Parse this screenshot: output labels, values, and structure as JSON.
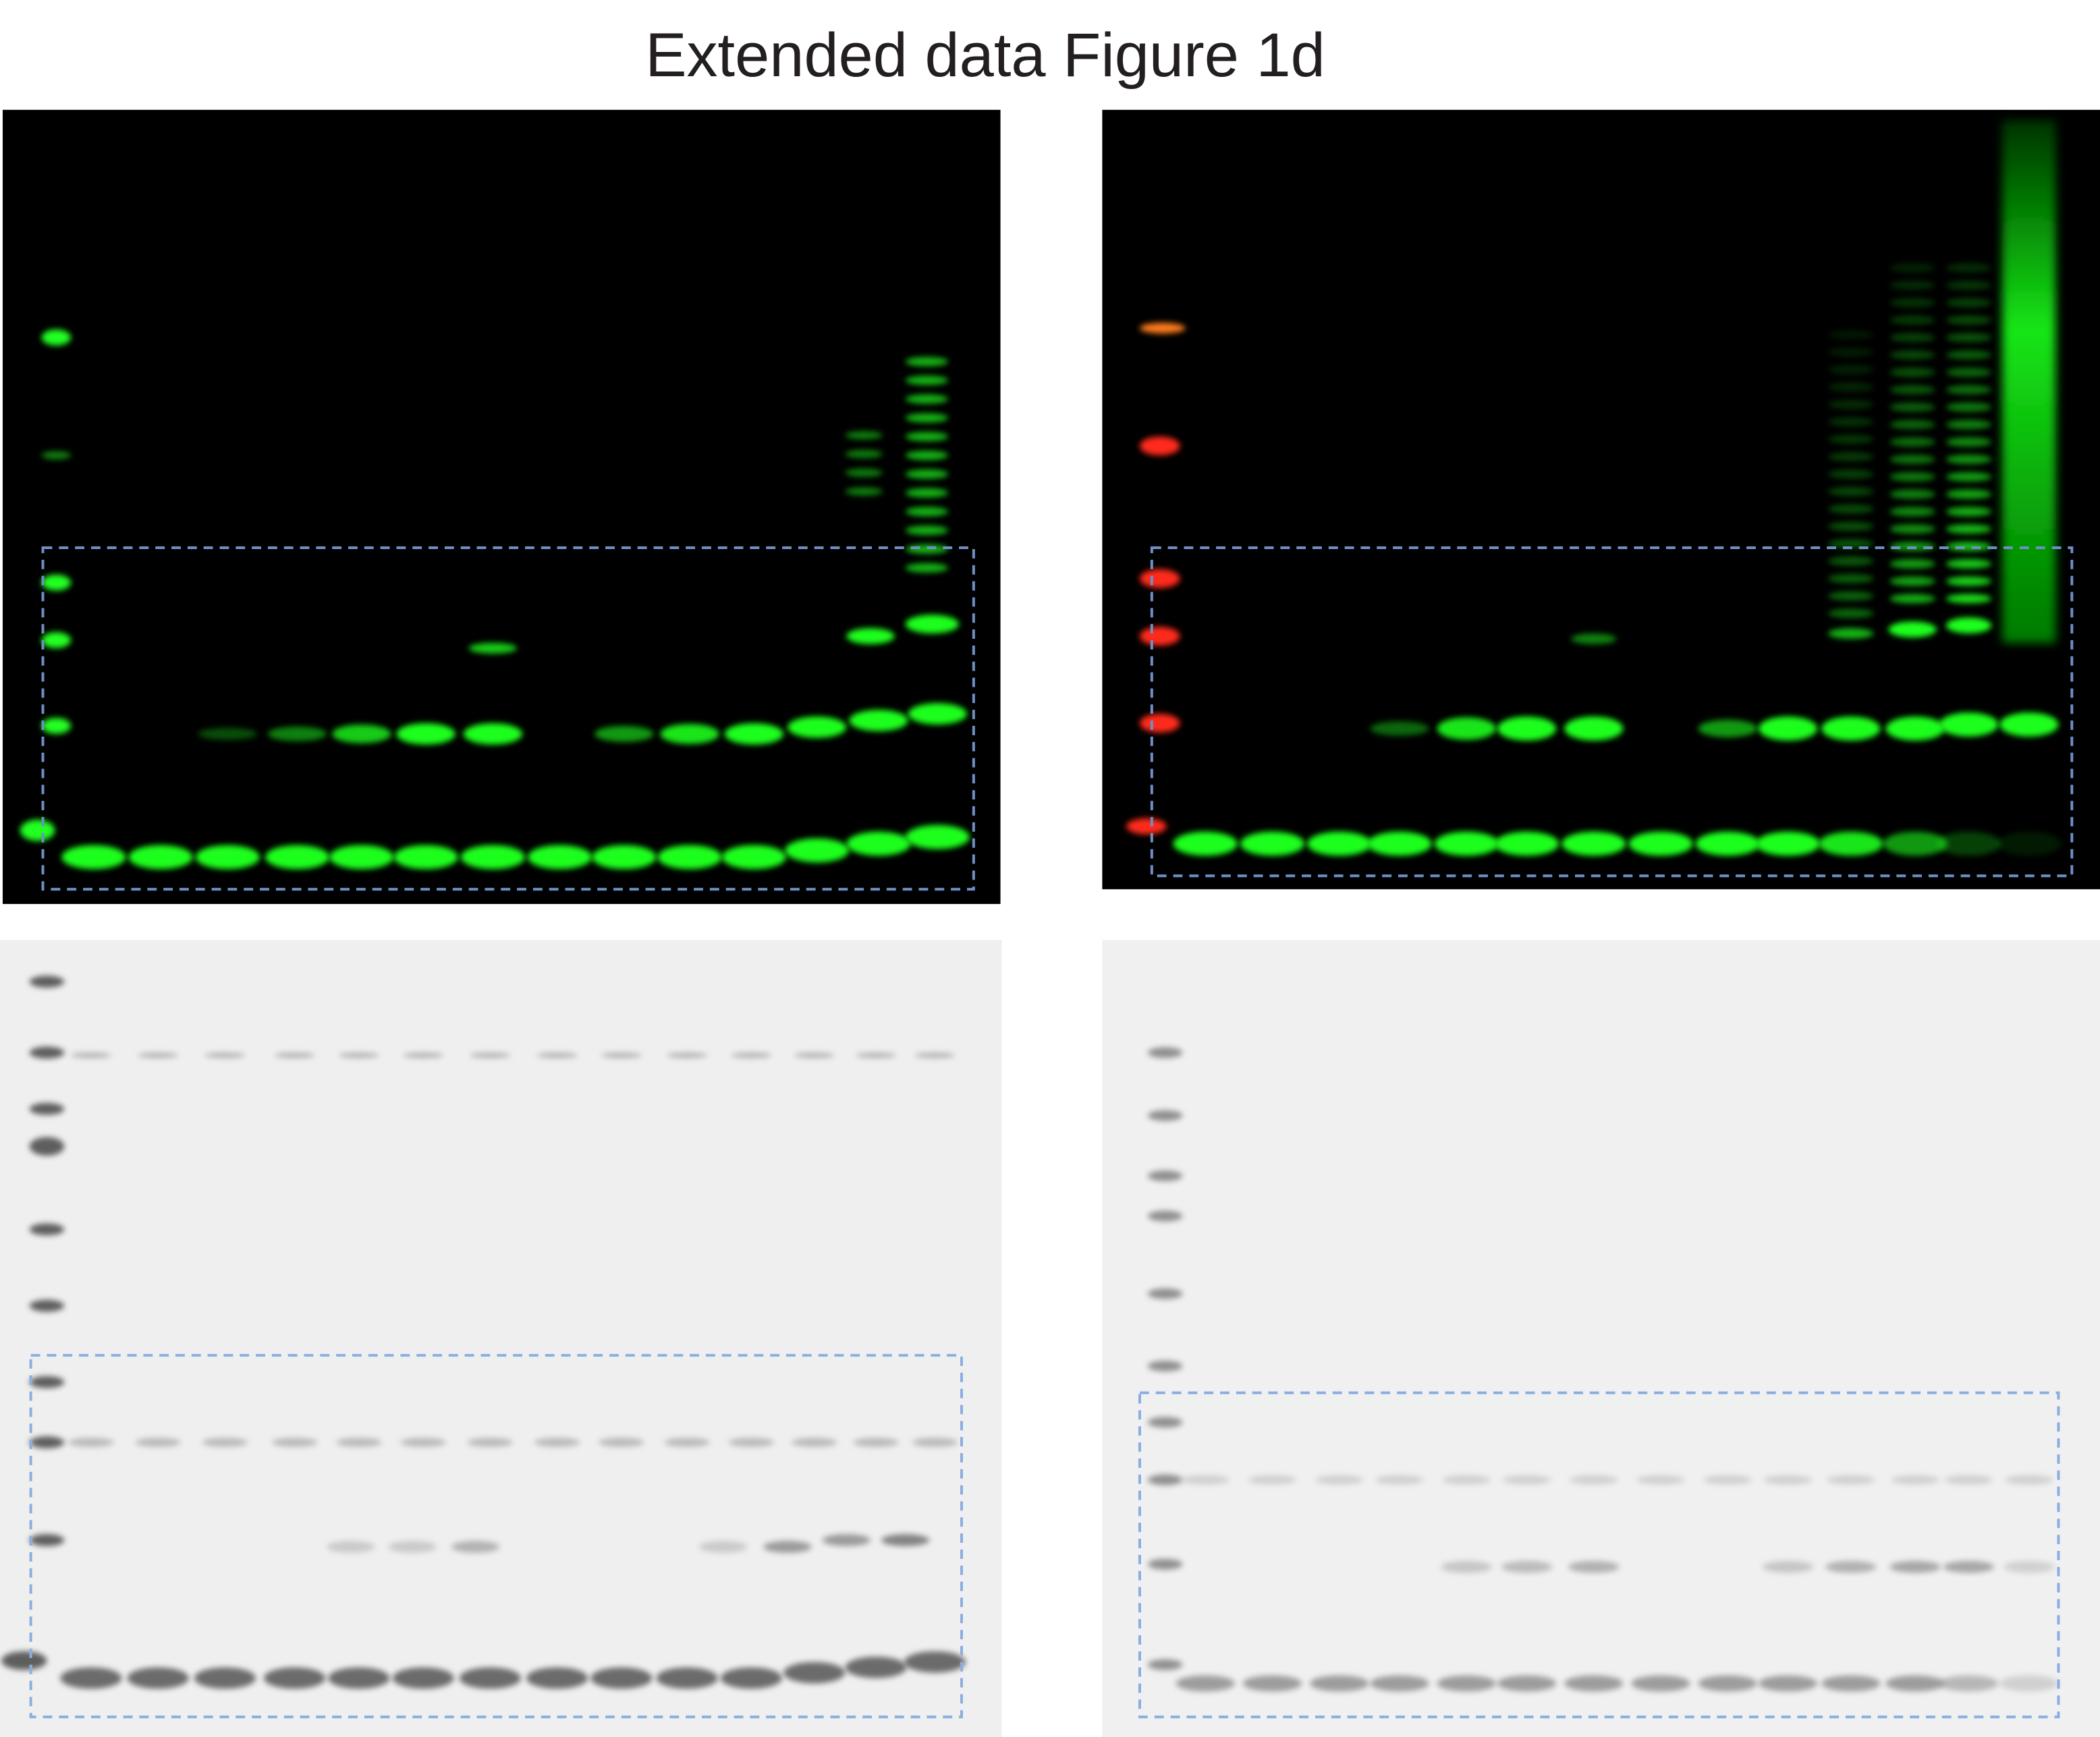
{
  "title": "Extended data Figure 1d"
}
